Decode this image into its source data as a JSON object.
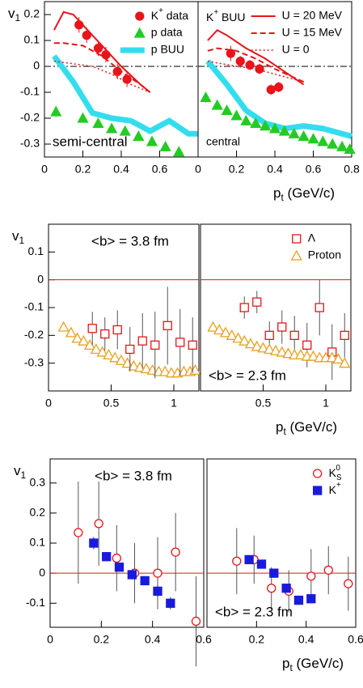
{
  "chart_data": [
    {
      "type": "scatter",
      "xlim": [
        0,
        0.8
      ],
      "xticks": [
        0,
        0.2,
        0.4,
        0.6
      ],
      "ylim": [
        -0.35,
        0.25
      ],
      "yticks": [
        0.2,
        0.1,
        0,
        -0.1,
        -0.2,
        -0.3
      ],
      "ylabel": {
        "text": "v",
        "sub": "1"
      },
      "zero_line": {
        "color": "#000000",
        "dash": "dashdot"
      },
      "legend_corner": "upper right",
      "annotations": [
        {
          "text": "semi-central",
          "corner": "lower left"
        }
      ],
      "series": [
        {
          "name": {
            "text": "K",
            "sup": "+",
            "after": " data"
          },
          "color": "#e8141a",
          "marker": "circle",
          "filled": true,
          "x": [
            0.18,
            0.22,
            0.28,
            0.32,
            0.38,
            0.43
          ],
          "values": [
            0.16,
            0.12,
            0.07,
            0.045,
            -0.02,
            -0.05
          ],
          "errors": [
            0.03,
            0.03,
            0.03,
            0.03,
            0.03,
            0.03
          ]
        },
        {
          "name": "p data",
          "color": "#22cc22",
          "marker": "triangle",
          "filled": true,
          "x": [
            0.06,
            0.2,
            0.28,
            0.35,
            0.42,
            0.49,
            0.56,
            0.63,
            0.7
          ],
          "values": [
            -0.175,
            -0.2,
            -0.22,
            -0.24,
            -0.25,
            -0.27,
            -0.29,
            -0.31,
            -0.33
          ],
          "errors": [
            0.02,
            0,
            0,
            0,
            0,
            0,
            0,
            0,
            0
          ]
        },
        {
          "name": "p BUU",
          "color": "#33ddee",
          "marker": "line",
          "dash": "solid",
          "width": 7,
          "x": [
            0.05,
            0.15,
            0.25,
            0.35,
            0.45,
            0.55,
            0.65,
            0.75,
            0.8
          ],
          "values": [
            0.04,
            -0.06,
            -0.18,
            -0.2,
            -0.21,
            -0.25,
            -0.21,
            -0.26,
            -0.26
          ]
        },
        {
          "color": "#e8141a",
          "marker": "line",
          "dash": "solid",
          "width": 2,
          "x": [
            0.05,
            0.1,
            0.15,
            0.2,
            0.3,
            0.4,
            0.5,
            0.55
          ],
          "values": [
            0.14,
            0.21,
            0.2,
            0.16,
            0.08,
            0.0,
            -0.07,
            -0.1
          ]
        },
        {
          "color": "#e8141a",
          "marker": "line",
          "dash": "dashed",
          "width": 2,
          "x": [
            0.05,
            0.1,
            0.2,
            0.3,
            0.4,
            0.5,
            0.55
          ],
          "values": [
            0.09,
            0.09,
            0.08,
            0.04,
            -0.02,
            -0.07,
            -0.1
          ]
        },
        {
          "color": "#e8141a",
          "marker": "line",
          "dash": "dotted",
          "width": 1.5,
          "x": [
            0.05,
            0.15,
            0.25,
            0.35,
            0.45,
            0.55
          ],
          "values": [
            0.02,
            0.01,
            0.0,
            -0.03,
            -0.07,
            -0.1
          ]
        }
      ]
    },
    {
      "type": "scatter",
      "xlim": [
        0,
        0.8
      ],
      "xticks": [
        0,
        0.2,
        0.4,
        0.6,
        0.8
      ],
      "ylim": [
        -0.35,
        0.25
      ],
      "xlabel": {
        "text": "p",
        "sub": "t",
        "after": " (GeV/c)"
      },
      "zero_line": {
        "color": "#000000",
        "dash": "dashdot"
      },
      "legend_corner": "upper right",
      "annotations": [
        {
          "text": "central",
          "corner": "lower left"
        },
        {
          "text": "K",
          "sup": "+",
          "after": " BUU",
          "corner": "upper left"
        }
      ],
      "series": [
        {
          "color": "#e8141a",
          "marker": "circle",
          "filled": true,
          "x": [
            0.17,
            0.22,
            0.27,
            0.32,
            0.38,
            0.42
          ],
          "values": [
            0.05,
            0.02,
            0.005,
            -0.01,
            -0.09,
            -0.08
          ],
          "errors": [
            0.03,
            0.02,
            0.02,
            0.02,
            0.02,
            0.02
          ]
        },
        {
          "color": "#22cc22",
          "marker": "triangle",
          "filled": true,
          "x": [
            0.04,
            0.1,
            0.15,
            0.2,
            0.25,
            0.3,
            0.35,
            0.4,
            0.45,
            0.5,
            0.55,
            0.6,
            0.65,
            0.7,
            0.75,
            0.79
          ],
          "values": [
            -0.12,
            -0.15,
            -0.17,
            -0.19,
            -0.21,
            -0.22,
            -0.23,
            -0.24,
            -0.25,
            -0.26,
            -0.27,
            -0.28,
            -0.29,
            -0.3,
            -0.31,
            -0.32
          ],
          "errors": [
            0.02,
            0,
            0,
            0,
            0,
            0,
            0,
            0,
            0,
            0,
            0,
            0,
            0,
            0,
            0,
            0
          ]
        },
        {
          "color": "#33ddee",
          "marker": "line",
          "dash": "solid",
          "width": 7,
          "x": [
            0.05,
            0.15,
            0.25,
            0.35,
            0.45,
            0.55,
            0.65,
            0.75,
            0.8
          ],
          "values": [
            0.02,
            -0.07,
            -0.17,
            -0.22,
            -0.24,
            -0.23,
            -0.24,
            -0.26,
            -0.27
          ]
        },
        {
          "name": "U = 20 MeV",
          "color": "#e8141a",
          "marker": "line",
          "dash": "solid",
          "width": 2,
          "x": [
            0.05,
            0.1,
            0.15,
            0.25,
            0.35,
            0.45,
            0.55
          ],
          "values": [
            0.1,
            0.14,
            0.12,
            0.07,
            0.03,
            -0.02,
            -0.07
          ]
        },
        {
          "name": "U = 15 MeV",
          "color": "#e8141a",
          "marker": "line",
          "dash": "dashed",
          "width": 2,
          "x": [
            0.05,
            0.1,
            0.2,
            0.3,
            0.4,
            0.55
          ],
          "values": [
            0.06,
            0.07,
            0.06,
            0.03,
            -0.01,
            -0.06
          ]
        },
        {
          "name": "U = 0",
          "color": "#e8141a",
          "marker": "line",
          "dash": "dotted",
          "width": 1.5,
          "x": [
            0.05,
            0.2,
            0.3,
            0.4,
            0.55
          ],
          "values": [
            0.02,
            0.0,
            -0.01,
            -0.03,
            -0.06
          ]
        }
      ]
    },
    {
      "type": "scatter",
      "xlim": [
        0,
        1.2
      ],
      "xticks": [
        0,
        0.5,
        1
      ],
      "ylim": [
        -0.4,
        0.2
      ],
      "yticks": [
        0.1,
        0,
        -0.1,
        -0.2,
        -0.3
      ],
      "ylabel": {
        "text": "v",
        "sub": "1"
      },
      "zero_line": {
        "color": "#e8141a",
        "dash": "solid"
      },
      "annotations": [
        {
          "text": "<b> = 3.8 fm",
          "corner": "upper center"
        }
      ],
      "series": [
        {
          "color": "#e8a020",
          "marker": "triangle",
          "filled": false,
          "x": [
            0.12,
            0.18,
            0.23,
            0.28,
            0.33,
            0.38,
            0.43,
            0.48,
            0.53,
            0.58,
            0.63,
            0.68,
            0.73,
            0.78,
            0.83,
            0.88,
            0.93,
            0.98,
            1.03,
            1.08,
            1.13,
            1.17
          ],
          "values": [
            -0.17,
            -0.19,
            -0.21,
            -0.22,
            -0.235,
            -0.25,
            -0.26,
            -0.27,
            -0.28,
            -0.29,
            -0.3,
            -0.31,
            -0.315,
            -0.32,
            -0.325,
            -0.33,
            -0.33,
            -0.335,
            -0.335,
            -0.33,
            -0.33,
            -0.325
          ]
        },
        {
          "color": "#e8141a",
          "marker": "square",
          "filled": false,
          "x": [
            0.35,
            0.45,
            0.55,
            0.65,
            0.75,
            0.85,
            0.95,
            1.05,
            1.15
          ],
          "values": [
            -0.175,
            -0.195,
            -0.18,
            -0.25,
            -0.22,
            -0.235,
            -0.165,
            -0.225,
            -0.235
          ],
          "errors": [
            0.06,
            0.06,
            0.07,
            0.08,
            0.1,
            0.12,
            0.14,
            0.12,
            0.1
          ]
        }
      ]
    },
    {
      "type": "scatter",
      "xlim": [
        0,
        1.2
      ],
      "xticks": [
        0.5,
        1
      ],
      "ylim": [
        -0.4,
        0.2
      ],
      "xlabel": {
        "text": "p",
        "sub": "t",
        "after": " (GeV/c)"
      },
      "zero_line": {
        "color": "#e8141a",
        "dash": "solid"
      },
      "legend_corner": "upper right",
      "annotations": [
        {
          "text": "<b> = 2.3 fm",
          "corner": "lower left"
        }
      ],
      "series": [
        {
          "name": "Λ",
          "color": "#e8141a",
          "marker": "square",
          "filled": false,
          "x": [
            0.35,
            0.45,
            0.55,
            0.65,
            0.75,
            0.85,
            0.95,
            1.05,
            1.15
          ],
          "values": [
            -0.1,
            -0.08,
            -0.2,
            -0.17,
            -0.2,
            -0.235,
            -0.1,
            -0.26,
            -0.2
          ],
          "errors": [
            0.04,
            0.04,
            0.05,
            0.06,
            0.07,
            0.08,
            0.1,
            0.1,
            0.08
          ]
        },
        {
          "name": "Proton",
          "color": "#e8a020",
          "marker": "triangle",
          "filled": false,
          "x": [
            0.1,
            0.15,
            0.2,
            0.25,
            0.3,
            0.35,
            0.4,
            0.45,
            0.5,
            0.55,
            0.6,
            0.65,
            0.7,
            0.75,
            0.8,
            0.85,
            0.9,
            0.95,
            1.0,
            1.05,
            1.1,
            1.15
          ],
          "values": [
            -0.17,
            -0.18,
            -0.19,
            -0.2,
            -0.21,
            -0.22,
            -0.23,
            -0.24,
            -0.245,
            -0.25,
            -0.255,
            -0.26,
            -0.265,
            -0.27,
            -0.27,
            -0.275,
            -0.275,
            -0.28,
            -0.28,
            -0.28,
            -0.285,
            -0.3
          ]
        }
      ]
    },
    {
      "type": "scatter",
      "xlim": [
        0,
        0.6
      ],
      "xticks": [
        0,
        0.2,
        0.4,
        0.6
      ],
      "ylim": [
        -0.18,
        0.38
      ],
      "yticks": [
        0.3,
        0.2,
        0.1,
        0,
        -0.1
      ],
      "ylabel": {
        "text": "v",
        "sub": "1"
      },
      "zero_line": {
        "color": "#e8141a",
        "dash": "solid"
      },
      "annotations": [
        {
          "text": "<b> = 3.8 fm",
          "corner": "upper center"
        }
      ],
      "series": [
        {
          "color": "#e8141a",
          "marker": "circle",
          "filled": false,
          "x": [
            0.11,
            0.19,
            0.26,
            0.33,
            0.42,
            0.49,
            0.57
          ],
          "values": [
            0.135,
            0.165,
            0.05,
            0.0,
            0.0,
            0.07,
            -0.16
          ],
          "errors": [
            0.17,
            0.14,
            0.11,
            0.1,
            0.12,
            0.13,
            0.15
          ]
        },
        {
          "color": "#1a1add",
          "marker": "square",
          "filled": true,
          "x": [
            0.17,
            0.22,
            0.27,
            0.32,
            0.37,
            0.42,
            0.47
          ],
          "values": [
            0.1,
            0.055,
            0.02,
            -0.005,
            -0.025,
            -0.06,
            -0.1
          ],
          "errors": [
            0.02,
            0.015,
            0.015,
            0.015,
            0.015,
            0.02,
            0.02
          ]
        }
      ]
    },
    {
      "type": "scatter",
      "xlim": [
        0,
        0.6
      ],
      "xticks": [
        0.2,
        0.4,
        0.6
      ],
      "ylim": [
        -0.18,
        0.38
      ],
      "xlabel": {
        "text": "p",
        "sub": "t",
        "after": " (GeV/c)"
      },
      "zero_line": {
        "color": "#e8141a",
        "dash": "solid"
      },
      "legend_corner": "upper right",
      "annotations": [
        {
          "text": "<b> = 2.3 fm",
          "corner": "lower left"
        }
      ],
      "series": [
        {
          "name": {
            "text": "K",
            "sub": "S",
            "sup": "0"
          },
          "color": "#e8141a",
          "marker": "circle",
          "filled": false,
          "x": [
            0.12,
            0.19,
            0.26,
            0.33,
            0.42,
            0.49,
            0.57
          ],
          "values": [
            0.04,
            0.045,
            -0.05,
            -0.06,
            -0.01,
            0.01,
            -0.035
          ],
          "errors": [
            0.11,
            0.08,
            0.07,
            0.07,
            0.09,
            0.08,
            0.09
          ]
        },
        {
          "name": {
            "text": "K",
            "sup": "+"
          },
          "color": "#1a1add",
          "marker": "square",
          "filled": true,
          "x": [
            0.17,
            0.22,
            0.27,
            0.32,
            0.37,
            0.42
          ],
          "values": [
            0.045,
            0.03,
            0.0,
            -0.05,
            -0.09,
            -0.085
          ],
          "errors": [
            0.015,
            0.015,
            0.015,
            0.015,
            0.015,
            0.015
          ]
        }
      ]
    }
  ]
}
